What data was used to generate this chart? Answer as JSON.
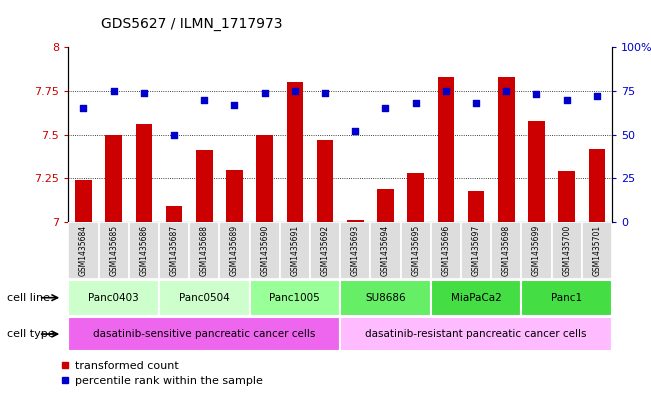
{
  "title": "GDS5627 / ILMN_1717973",
  "samples": [
    "GSM1435684",
    "GSM1435685",
    "GSM1435686",
    "GSM1435687",
    "GSM1435688",
    "GSM1435689",
    "GSM1435690",
    "GSM1435691",
    "GSM1435692",
    "GSM1435693",
    "GSM1435694",
    "GSM1435695",
    "GSM1435696",
    "GSM1435697",
    "GSM1435698",
    "GSM1435699",
    "GSM1435700",
    "GSM1435701"
  ],
  "transformed_count": [
    7.24,
    7.5,
    7.56,
    7.09,
    7.41,
    7.3,
    7.5,
    7.8,
    7.47,
    7.01,
    7.19,
    7.28,
    7.83,
    7.18,
    7.83,
    7.58,
    7.29,
    7.42
  ],
  "percentile_rank": [
    65,
    75,
    74,
    50,
    70,
    67,
    74,
    75,
    74,
    52,
    65,
    68,
    75,
    68,
    75,
    73,
    70,
    72
  ],
  "ylim": [
    7.0,
    8.0
  ],
  "yticks": [
    7.0,
    7.25,
    7.5,
    7.75,
    8.0
  ],
  "ytick_labels": [
    "7",
    "7.25",
    "7.5",
    "7.75",
    "8"
  ],
  "right_yticks": [
    0,
    25,
    50,
    75,
    100
  ],
  "right_ytick_labels": [
    "0",
    "25",
    "50",
    "75",
    "100%"
  ],
  "bar_color": "#cc0000",
  "dot_color": "#0000cc",
  "cell_line_groups": [
    {
      "label": "Panc0403",
      "indices": [
        0,
        1,
        2
      ],
      "color": "#ccffcc"
    },
    {
      "label": "Panc0504",
      "indices": [
        3,
        4,
        5
      ],
      "color": "#ccffcc"
    },
    {
      "label": "Panc1005",
      "indices": [
        6,
        7,
        8
      ],
      "color": "#99ff99"
    },
    {
      "label": "SU8686",
      "indices": [
        9,
        10,
        11
      ],
      "color": "#66ee66"
    },
    {
      "label": "MiaPaCa2",
      "indices": [
        12,
        13,
        14
      ],
      "color": "#44dd44"
    },
    {
      "label": "Panc1",
      "indices": [
        15,
        16,
        17
      ],
      "color": "#44dd44"
    }
  ],
  "cell_type_groups": [
    {
      "label": "dasatinib-sensitive pancreatic cancer cells",
      "indices": [
        0,
        1,
        2,
        3,
        4,
        5,
        6,
        7,
        8
      ],
      "color": "#ee66ee"
    },
    {
      "label": "dasatinib-resistant pancreatic cancer cells",
      "indices": [
        9,
        10,
        11,
        12,
        13,
        14,
        15,
        16,
        17
      ],
      "color": "#ffbbff"
    }
  ],
  "legend_bar_label": "transformed count",
  "legend_dot_label": "percentile rank within the sample",
  "tick_label_color_left": "#cc0000",
  "tick_label_color_right": "#0000cc"
}
